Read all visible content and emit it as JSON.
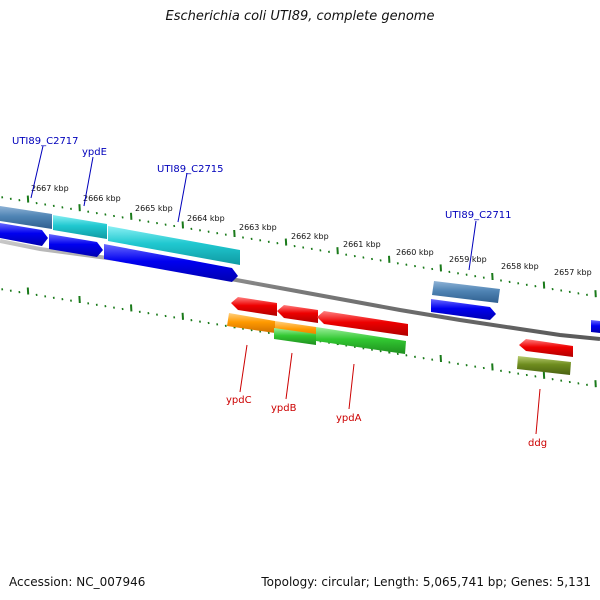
{
  "header": {
    "title": "Escherichia coli UTI89, complete genome"
  },
  "footer": {
    "accession": "Accession: NC_007946",
    "summary": "Topology: circular; Length: 5,065,741 bp; Genes: 5,131"
  },
  "colors": {
    "backbone": "#808080",
    "tick": "#1a7a1a",
    "label_top": "#0000bb",
    "label_bottom": "#cc0000",
    "cds_forward": "#0000ff",
    "cds_reverse": "#ff0000",
    "gene_steel": "#4f84b4",
    "gene_cyan": "#20c8d0",
    "gene_orange": "#ff9a00",
    "gene_green": "#32c832",
    "gene_olive": "#6e8c1e"
  },
  "ruler": {
    "unit": "kbp",
    "labels": [
      "2667 kbp",
      "2666 kbp",
      "2665 kbp",
      "2664 kbp",
      "2663 kbp",
      "2662 kbp",
      "2661 kbp",
      "2660 kbp",
      "2659 kbp",
      "2658 kbp",
      "2657 kbp"
    ]
  },
  "gene_labels": [
    {
      "name": "UTI89_C2717",
      "strand": "top"
    },
    {
      "name": "ypdE",
      "strand": "top"
    },
    {
      "name": "UTI89_C2715",
      "strand": "top"
    },
    {
      "name": "UTI89_C2711",
      "strand": "top"
    },
    {
      "name": "ypdC",
      "strand": "bottom"
    },
    {
      "name": "ypdB",
      "strand": "bottom"
    },
    {
      "name": "ypdA",
      "strand": "bottom"
    },
    {
      "name": "ddg",
      "strand": "bottom"
    }
  ]
}
